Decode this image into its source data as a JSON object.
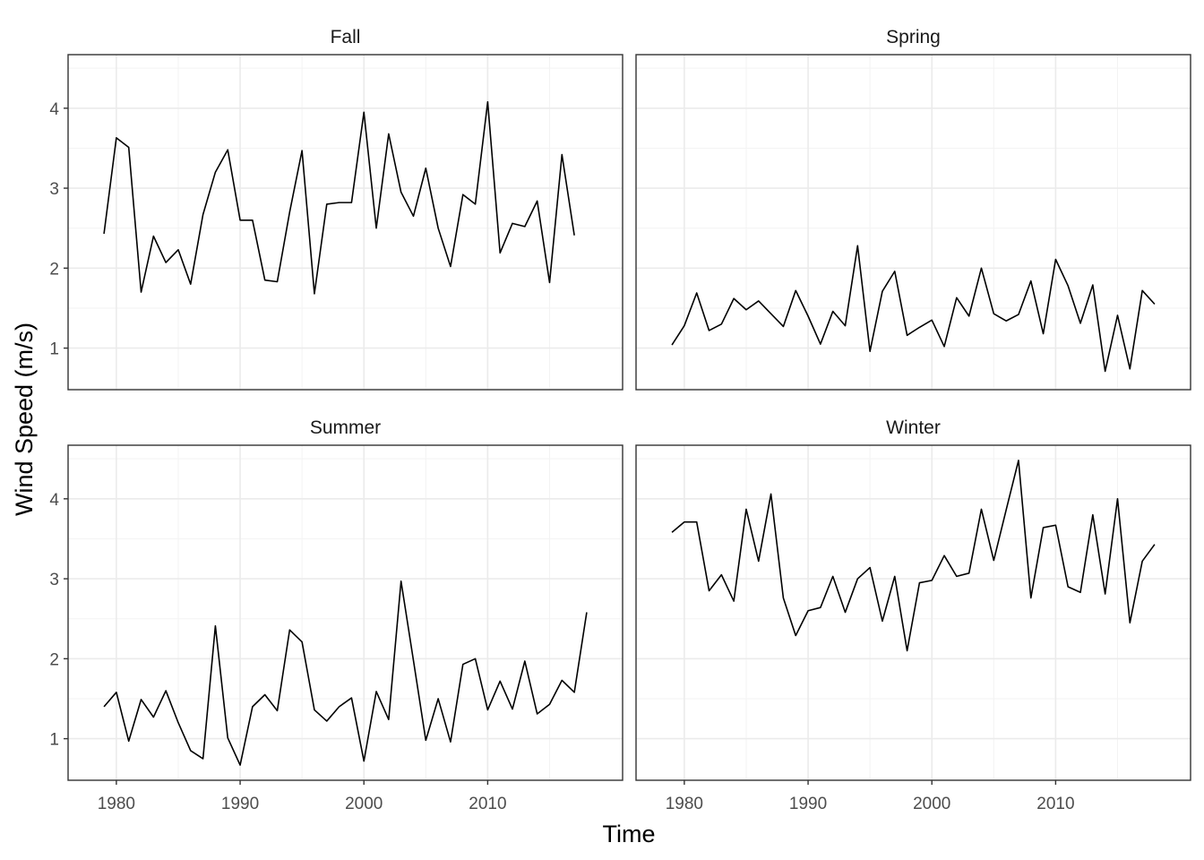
{
  "chart_data": {
    "type": "line",
    "facet_type": "wrap",
    "xlabel": "Time",
    "ylabel": "Wind Speed (m/s)",
    "xlim": [
      1976.1,
      2020.9
    ],
    "ylim": [
      0.48,
      4.67
    ],
    "x_ticks": [
      1980,
      1990,
      2000,
      2010
    ],
    "x_tick_labels": [
      "1980",
      "1990",
      "2000",
      "2010"
    ],
    "y_ticks": [
      1,
      2,
      3,
      4
    ],
    "y_tick_labels": [
      "1",
      "2",
      "3",
      "4"
    ],
    "x": [
      1979,
      1980,
      1981,
      1982,
      1983,
      1984,
      1985,
      1986,
      1987,
      1988,
      1989,
      1990,
      1991,
      1992,
      1993,
      1994,
      1995,
      1996,
      1997,
      1998,
      1999,
      2000,
      2001,
      2002,
      2003,
      2004,
      2005,
      2006,
      2007,
      2008,
      2009,
      2010,
      2011,
      2012,
      2013,
      2014,
      2015,
      2016,
      2017,
      2018
    ],
    "grid": true,
    "legend": "none",
    "line_color": "#000000",
    "panels": [
      {
        "name": "Fall",
        "values": [
          2.43,
          3.63,
          3.51,
          1.7,
          2.4,
          2.07,
          2.23,
          1.8,
          2.67,
          3.2,
          3.48,
          2.6,
          2.6,
          1.85,
          1.83,
          2.7,
          3.47,
          1.68,
          2.8,
          2.82,
          2.82,
          3.95,
          2.5,
          3.68,
          2.95,
          2.65,
          3.25,
          2.5,
          2.02,
          2.92,
          2.8,
          4.08,
          2.19,
          2.56,
          2.52,
          2.84,
          1.82,
          3.42,
          2.41,
          null
        ]
      },
      {
        "name": "Spring",
        "values": [
          1.04,
          1.28,
          1.69,
          1.22,
          1.3,
          1.62,
          1.48,
          1.59,
          1.43,
          1.27,
          1.72,
          1.4,
          1.05,
          1.46,
          1.28,
          2.28,
          0.96,
          1.71,
          1.96,
          1.16,
          1.26,
          1.35,
          1.02,
          1.63,
          1.4,
          2.0,
          1.43,
          1.34,
          1.42,
          1.84,
          1.18,
          2.11,
          1.78,
          1.31,
          1.79,
          0.71,
          1.41,
          0.74,
          1.72,
          1.55
        ]
      },
      {
        "name": "Summer",
        "values": [
          1.4,
          1.58,
          0.97,
          1.49,
          1.27,
          1.6,
          1.2,
          0.85,
          0.75,
          2.41,
          1.01,
          0.67,
          1.4,
          1.55,
          1.35,
          2.36,
          2.21,
          1.36,
          1.22,
          1.4,
          1.51,
          0.72,
          1.59,
          1.24,
          2.97,
          1.98,
          0.98,
          1.5,
          0.96,
          1.93,
          2.0,
          1.36,
          1.72,
          1.37,
          1.97,
          1.31,
          1.43,
          1.73,
          1.58,
          2.58
        ]
      },
      {
        "name": "Winter",
        "values": [
          3.58,
          3.71,
          3.71,
          2.85,
          3.05,
          2.72,
          3.87,
          3.22,
          4.06,
          2.76,
          2.29,
          2.6,
          2.64,
          3.03,
          2.58,
          3.0,
          3.14,
          2.47,
          3.03,
          2.1,
          2.95,
          2.98,
          3.29,
          3.03,
          3.07,
          3.87,
          3.23,
          3.86,
          4.48,
          2.76,
          3.64,
          3.67,
          2.9,
          2.83,
          3.8,
          2.81,
          4.0,
          2.45,
          3.22,
          3.43
        ]
      }
    ]
  }
}
